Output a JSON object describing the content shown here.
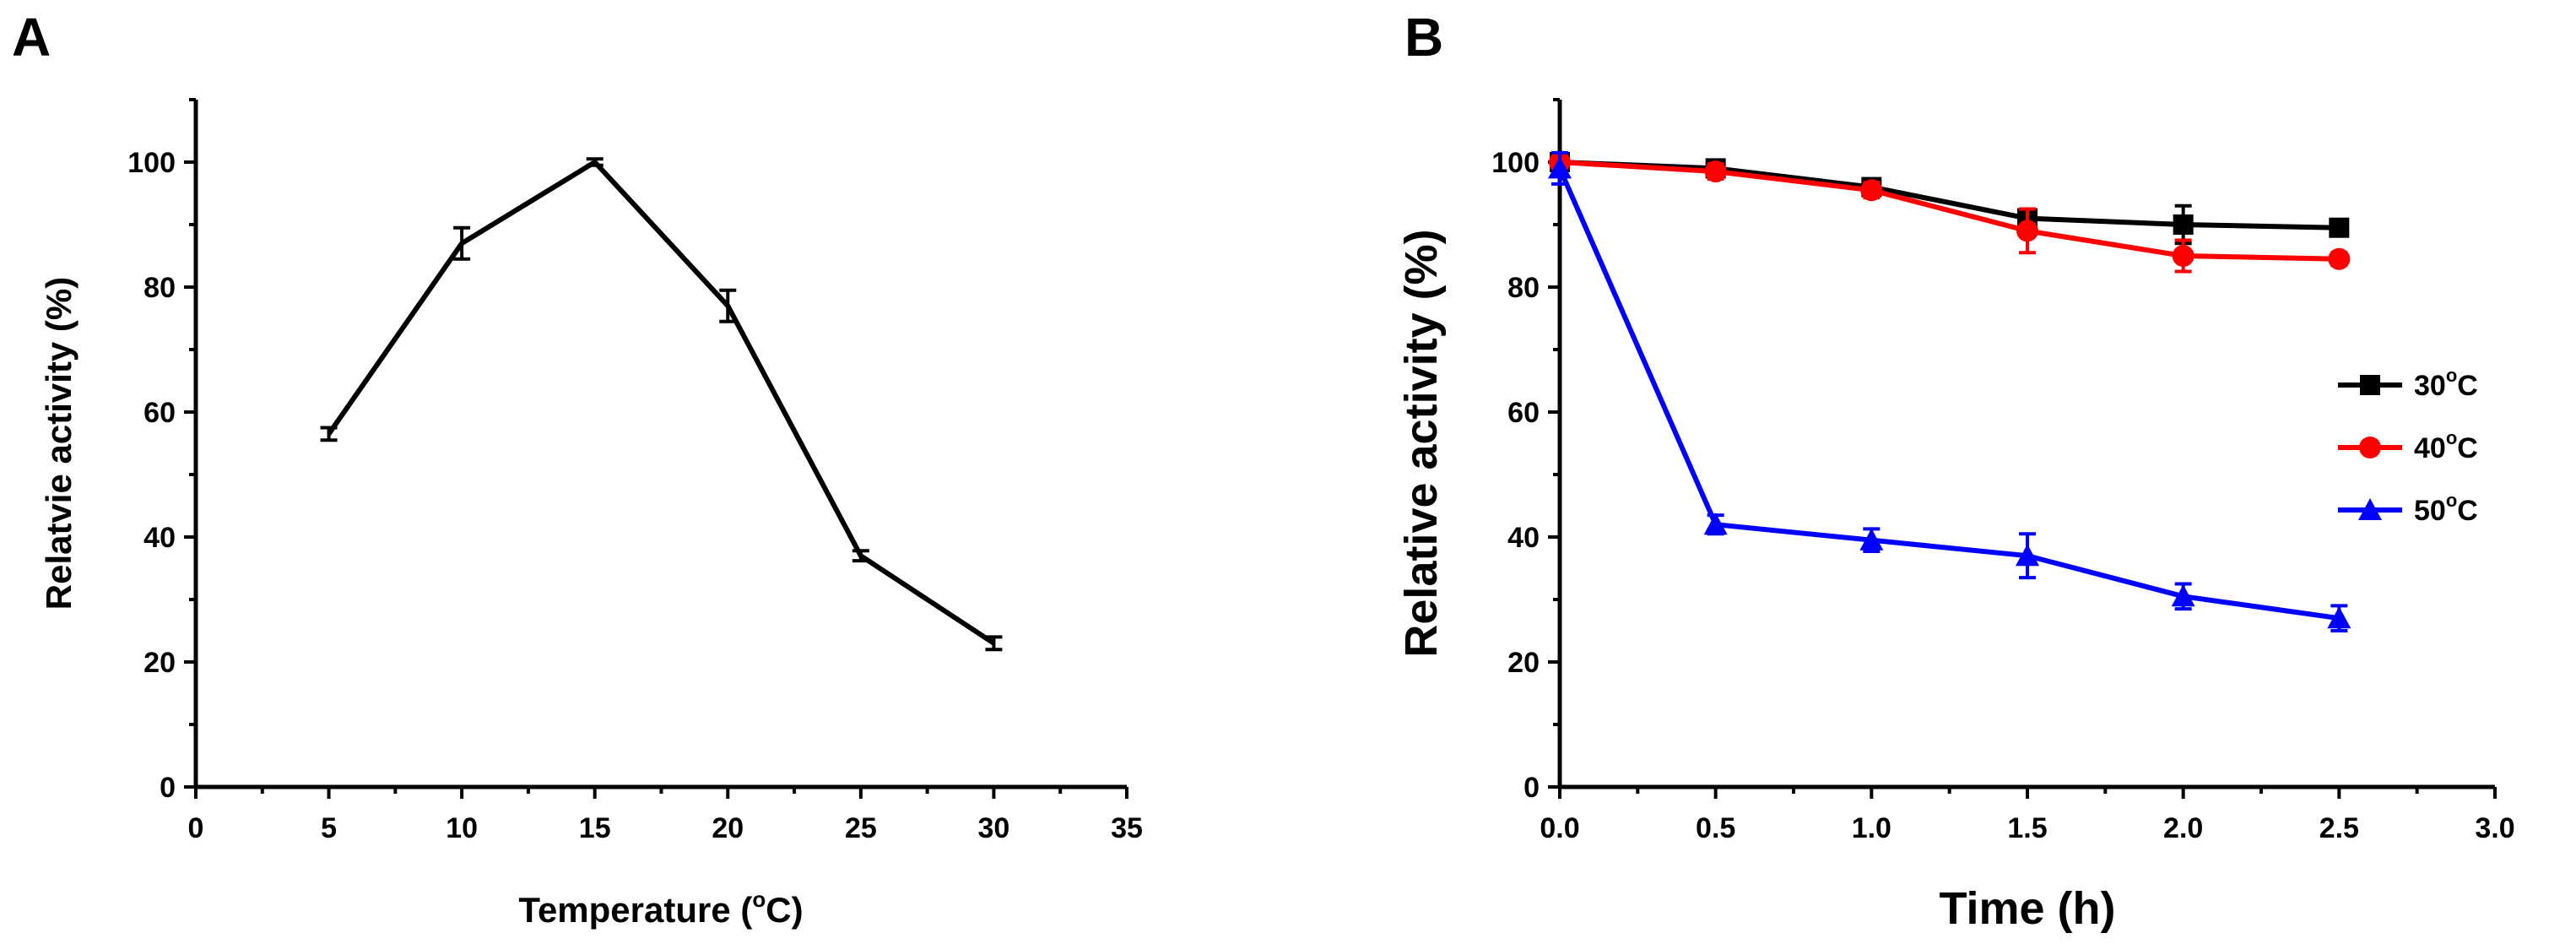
{
  "chart_data": [
    {
      "panel": "A",
      "type": "line",
      "title": "",
      "xlabel": "Temperature (",
      "xlabel_unit": "C)",
      "xlabel_degree": "o",
      "ylabel": "Relatvie activity (%)",
      "xlim": [
        0,
        35
      ],
      "ylim": [
        0,
        110
      ],
      "xticks": [
        "0",
        "5",
        "10",
        "15",
        "20",
        "25",
        "30",
        "35"
      ],
      "yticks": [
        "0",
        "20",
        "40",
        "60",
        "80",
        "100"
      ],
      "legend": "none",
      "series": [
        {
          "name": "activity",
          "color": "#000000",
          "marker": "none",
          "x": [
            5,
            10,
            15,
            20,
            25,
            30
          ],
          "y": [
            56.5,
            87,
            100,
            77,
            37,
            23
          ],
          "err": [
            1.0,
            2.5,
            0.5,
            2.5,
            0.8,
            1.0
          ]
        }
      ]
    },
    {
      "panel": "B",
      "type": "line",
      "title": "",
      "xlabel": "Time (h)",
      "ylabel": "Relative activity (%)",
      "xlim": [
        0,
        3.0
      ],
      "ylim": [
        0,
        110
      ],
      "xticks": [
        "0.0",
        "0.5",
        "1.0",
        "1.5",
        "2.0",
        "2.5",
        "3.0"
      ],
      "yticks": [
        "0",
        "20",
        "40",
        "60",
        "80",
        "100"
      ],
      "legend": "right",
      "series": [
        {
          "name": "30",
          "degree": "o",
          "unit": "C",
          "color": "#000000",
          "marker": "square",
          "x": [
            0.0,
            0.5,
            1.0,
            1.5,
            2.0,
            2.5
          ],
          "y": [
            100,
            99,
            96,
            91,
            90,
            89.5
          ],
          "err": [
            0.8,
            1.0,
            1.2,
            1.5,
            3.0,
            1.0
          ]
        },
        {
          "name": "40",
          "degree": "o",
          "unit": "C",
          "color": "#ff0000",
          "marker": "circle",
          "x": [
            0.0,
            0.5,
            1.0,
            1.5,
            2.0,
            2.5
          ],
          "y": [
            100,
            98.5,
            95.5,
            89,
            85,
            84.5
          ],
          "err": [
            0.8,
            1.2,
            1.2,
            3.5,
            2.5,
            1.0
          ]
        },
        {
          "name": "50",
          "degree": "o",
          "unit": "C",
          "color": "#0000ff",
          "marker": "triangle",
          "x": [
            0.0,
            0.5,
            1.0,
            1.5,
            2.0,
            2.5
          ],
          "y": [
            99,
            42,
            39.5,
            37,
            30.5,
            27
          ],
          "err": [
            2.5,
            1.5,
            1.8,
            3.5,
            2.0,
            2.0
          ]
        }
      ]
    }
  ]
}
